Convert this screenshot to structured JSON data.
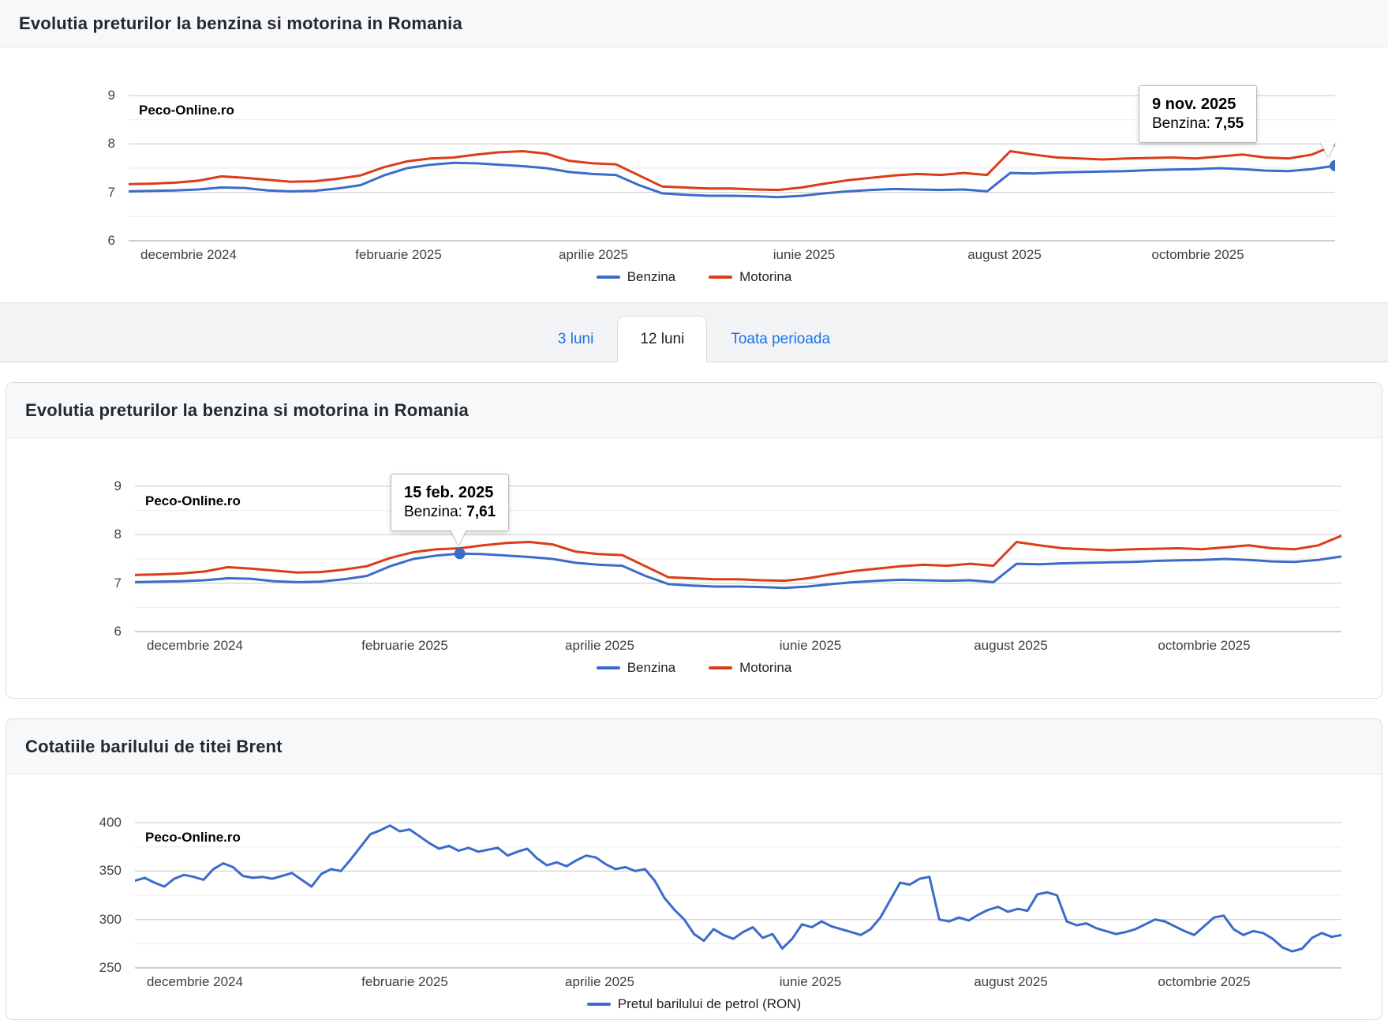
{
  "tab_bar": {
    "tabs": [
      {
        "label": "3 luni",
        "active": false
      },
      {
        "label": "12 luni",
        "active": true
      },
      {
        "label": "Toata perioada",
        "active": false
      }
    ]
  },
  "colors": {
    "benzina": "#3b6cc9",
    "motorina": "#da3d19",
    "petrol": "#3b6cc9",
    "link_blue": "#1a73e8"
  },
  "chart_data": [
    {
      "type": "line",
      "title": "Evolutia preturilor la benzina si motorina in Romania",
      "watermark": "Peco-Online.ro",
      "x_range": [
        "9 nov. 2024",
        "9 nov. 2025"
      ],
      "sampling": "weekly",
      "x_tick_labels": [
        "decembrie 2024",
        "februarie 2025",
        "aprilie 2025",
        "iunie 2025",
        "august 2025",
        "octombrie 2025"
      ],
      "x_tick_positions_pct": [
        5.0,
        22.4,
        38.5,
        56.0,
        72.6,
        88.6
      ],
      "ylim": [
        6,
        9
      ],
      "y_ticks": [
        9,
        8,
        7,
        6
      ],
      "y_minor_ticks": [
        8.5,
        7.5,
        6.5
      ],
      "grid": true,
      "legend_position": "bottom",
      "series": [
        {
          "name": "Benzina",
          "color": "#3b6cc9",
          "values": [
            7.02,
            7.03,
            7.04,
            7.06,
            7.1,
            7.09,
            7.04,
            7.02,
            7.03,
            7.08,
            7.15,
            7.35,
            7.5,
            7.57,
            7.61,
            7.6,
            7.57,
            7.54,
            7.5,
            7.42,
            7.38,
            7.36,
            7.15,
            6.98,
            6.95,
            6.93,
            6.93,
            6.92,
            6.9,
            6.93,
            6.98,
            7.02,
            7.05,
            7.07,
            7.06,
            7.05,
            7.06,
            7.02,
            7.4,
            7.39,
            7.41,
            7.42,
            7.43,
            7.44,
            7.46,
            7.47,
            7.48,
            7.5,
            7.48,
            7.45,
            7.44,
            7.48,
            7.55
          ]
        },
        {
          "name": "Motorina",
          "color": "#da3d19",
          "values": [
            7.17,
            7.18,
            7.2,
            7.24,
            7.33,
            7.3,
            7.26,
            7.22,
            7.23,
            7.28,
            7.35,
            7.52,
            7.64,
            7.7,
            7.72,
            7.78,
            7.83,
            7.85,
            7.8,
            7.65,
            7.6,
            7.58,
            7.35,
            7.12,
            7.1,
            7.08,
            7.08,
            7.06,
            7.05,
            7.1,
            7.18,
            7.25,
            7.3,
            7.35,
            7.38,
            7.36,
            7.4,
            7.36,
            7.85,
            7.78,
            7.72,
            7.7,
            7.68,
            7.7,
            7.71,
            7.72,
            7.7,
            7.74,
            7.78,
            7.72,
            7.7,
            7.78,
            7.98
          ]
        }
      ],
      "annotation": {
        "series": "Benzina",
        "point_index": 52,
        "date": "9 nov. 2025",
        "label": "Benzina:",
        "value": "7,55"
      }
    },
    {
      "type": "line",
      "title": "Evolutia preturilor la benzina si motorina in Romania",
      "watermark": "Peco-Online.ro",
      "x_range": [
        "9 nov. 2024",
        "9 nov. 2025"
      ],
      "sampling": "weekly",
      "x_tick_labels": [
        "decembrie 2024",
        "februarie 2025",
        "aprilie 2025",
        "iunie 2025",
        "august 2025",
        "octombrie 2025"
      ],
      "x_tick_positions_pct": [
        5.0,
        22.4,
        38.5,
        56.0,
        72.6,
        88.6
      ],
      "ylim": [
        6,
        9
      ],
      "y_ticks": [
        9,
        8,
        7,
        6
      ],
      "y_minor_ticks": [
        8.5,
        7.5,
        6.5
      ],
      "grid": true,
      "legend_position": "bottom",
      "series": [
        {
          "name": "Benzina",
          "color": "#3b6cc9",
          "values": [
            7.02,
            7.03,
            7.04,
            7.06,
            7.1,
            7.09,
            7.04,
            7.02,
            7.03,
            7.08,
            7.15,
            7.35,
            7.5,
            7.57,
            7.61,
            7.6,
            7.57,
            7.54,
            7.5,
            7.42,
            7.38,
            7.36,
            7.15,
            6.98,
            6.95,
            6.93,
            6.93,
            6.92,
            6.9,
            6.93,
            6.98,
            7.02,
            7.05,
            7.07,
            7.06,
            7.05,
            7.06,
            7.02,
            7.4,
            7.39,
            7.41,
            7.42,
            7.43,
            7.44,
            7.46,
            7.47,
            7.48,
            7.5,
            7.48,
            7.45,
            7.44,
            7.48,
            7.55
          ]
        },
        {
          "name": "Motorina",
          "color": "#da3d19",
          "values": [
            7.17,
            7.18,
            7.2,
            7.24,
            7.33,
            7.3,
            7.26,
            7.22,
            7.23,
            7.28,
            7.35,
            7.52,
            7.64,
            7.7,
            7.72,
            7.78,
            7.83,
            7.85,
            7.8,
            7.65,
            7.6,
            7.58,
            7.35,
            7.12,
            7.1,
            7.08,
            7.08,
            7.06,
            7.05,
            7.1,
            7.18,
            7.25,
            7.3,
            7.35,
            7.38,
            7.36,
            7.4,
            7.36,
            7.85,
            7.78,
            7.72,
            7.7,
            7.68,
            7.7,
            7.71,
            7.72,
            7.7,
            7.74,
            7.78,
            7.72,
            7.7,
            7.78,
            7.98
          ]
        }
      ],
      "annotation": {
        "series": "Benzina",
        "point_index": 14,
        "date": "15 feb. 2025",
        "label": "Benzina:",
        "value": "7,61"
      }
    },
    {
      "type": "line",
      "title": "Cotatiile barilului de titei Brent",
      "watermark": "Peco-Online.ro",
      "x_range": [
        "9 nov. 2024",
        "9 nov. 2025"
      ],
      "sampling": "every few days",
      "x_tick_labels": [
        "decembrie 2024",
        "februarie 2025",
        "aprilie 2025",
        "iunie 2025",
        "august 2025",
        "octombrie 2025"
      ],
      "x_tick_positions_pct": [
        5.0,
        22.4,
        38.5,
        56.0,
        72.6,
        88.6
      ],
      "ylim": [
        250,
        400
      ],
      "y_ticks": [
        400,
        350,
        300,
        250
      ],
      "y_minor_ticks": [
        375,
        325,
        275
      ],
      "grid": true,
      "legend_position": "bottom",
      "series": [
        {
          "name": "Pretul barilului de petrol (RON)",
          "color": "#3b6cc9",
          "values": [
            340,
            343,
            338,
            334,
            342,
            346,
            344,
            341,
            352,
            358,
            354,
            345,
            343,
            344,
            342,
            345,
            348,
            341,
            334,
            347,
            352,
            350,
            362,
            375,
            388,
            392,
            397,
            391,
            393,
            386,
            379,
            373,
            376,
            371,
            374,
            370,
            372,
            374,
            366,
            370,
            373,
            363,
            356,
            359,
            355,
            361,
            366,
            364,
            357,
            352,
            354,
            350,
            352,
            340,
            322,
            310,
            300,
            285,
            278,
            290,
            284,
            280,
            287,
            292,
            281,
            285,
            270,
            280,
            295,
            292,
            298,
            293,
            290,
            287,
            284,
            290,
            302,
            320,
            338,
            336,
            342,
            344,
            300,
            298,
            302,
            299,
            305,
            310,
            313,
            308,
            311,
            309,
            326,
            328,
            325,
            298,
            294,
            296,
            291,
            288,
            285,
            287,
            290,
            295,
            300,
            298,
            293,
            288,
            284,
            293,
            302,
            304,
            290,
            284,
            288,
            286,
            280,
            271,
            267,
            270,
            281,
            286,
            282,
            284
          ]
        }
      ],
      "annotation": null
    }
  ]
}
